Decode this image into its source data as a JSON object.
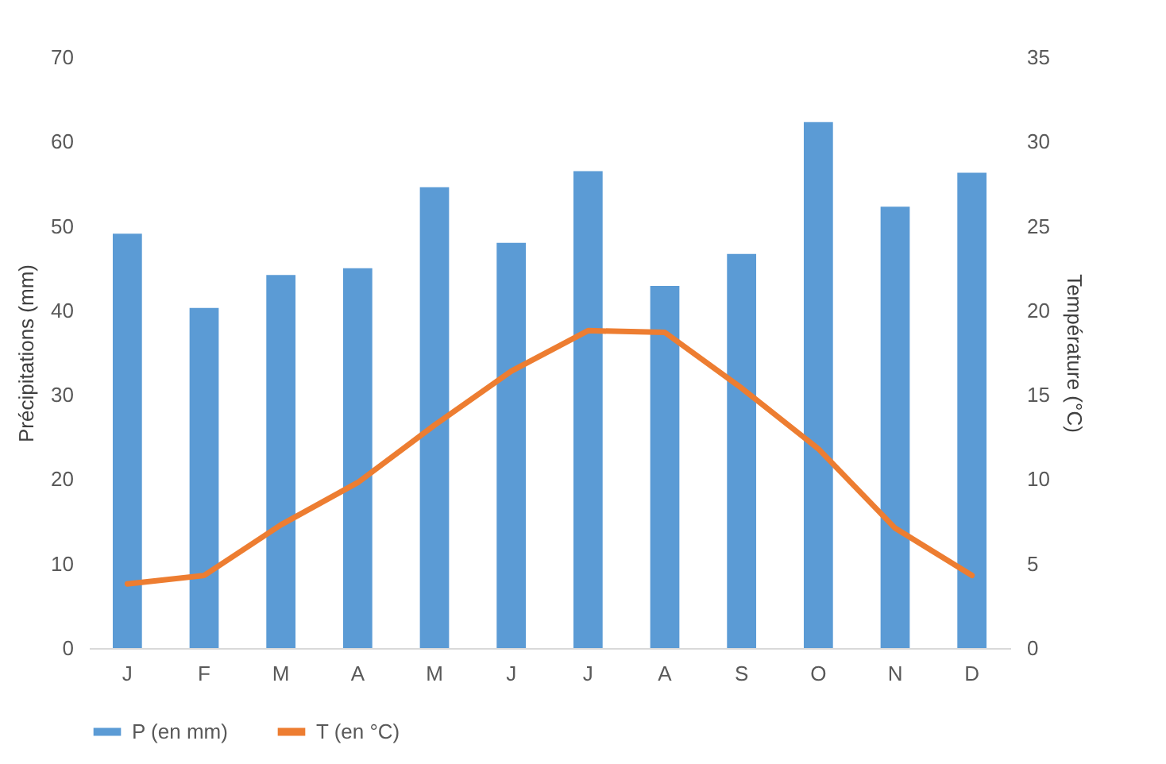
{
  "chart_data": {
    "type": "bar",
    "categories": [
      "J",
      "F",
      "M",
      "A",
      "M",
      "J",
      "J",
      "A",
      "S",
      "O",
      "N",
      "D"
    ],
    "series": [
      {
        "name": "P (en mm)",
        "color": "#5b9bd5",
        "values": [
          49.1,
          40.3,
          44.2,
          45,
          54.6,
          48,
          56.5,
          42.9,
          46.7,
          62.3,
          52.3,
          56.3
        ]
      },
      {
        "name": "T (en °C)",
        "type": "line",
        "axis": "y2",
        "color": "#ed7d31",
        "values": [
          3.8,
          4.3,
          7.3,
          9.8,
          13.2,
          16.4,
          18.8,
          18.7,
          15.4,
          11.8,
          7.1,
          4.3
        ]
      }
    ],
    "ylabel": "Précipitations (mm)",
    "y2label": "Température (°C)",
    "ylim": [
      0,
      70
    ],
    "yticks": [
      0,
      10,
      20,
      30,
      40,
      50,
      60,
      70
    ],
    "y2lim": [
      0,
      35
    ],
    "y2ticks": [
      0,
      5,
      10,
      15,
      20,
      25,
      30,
      35
    ],
    "legend": "bottom"
  }
}
